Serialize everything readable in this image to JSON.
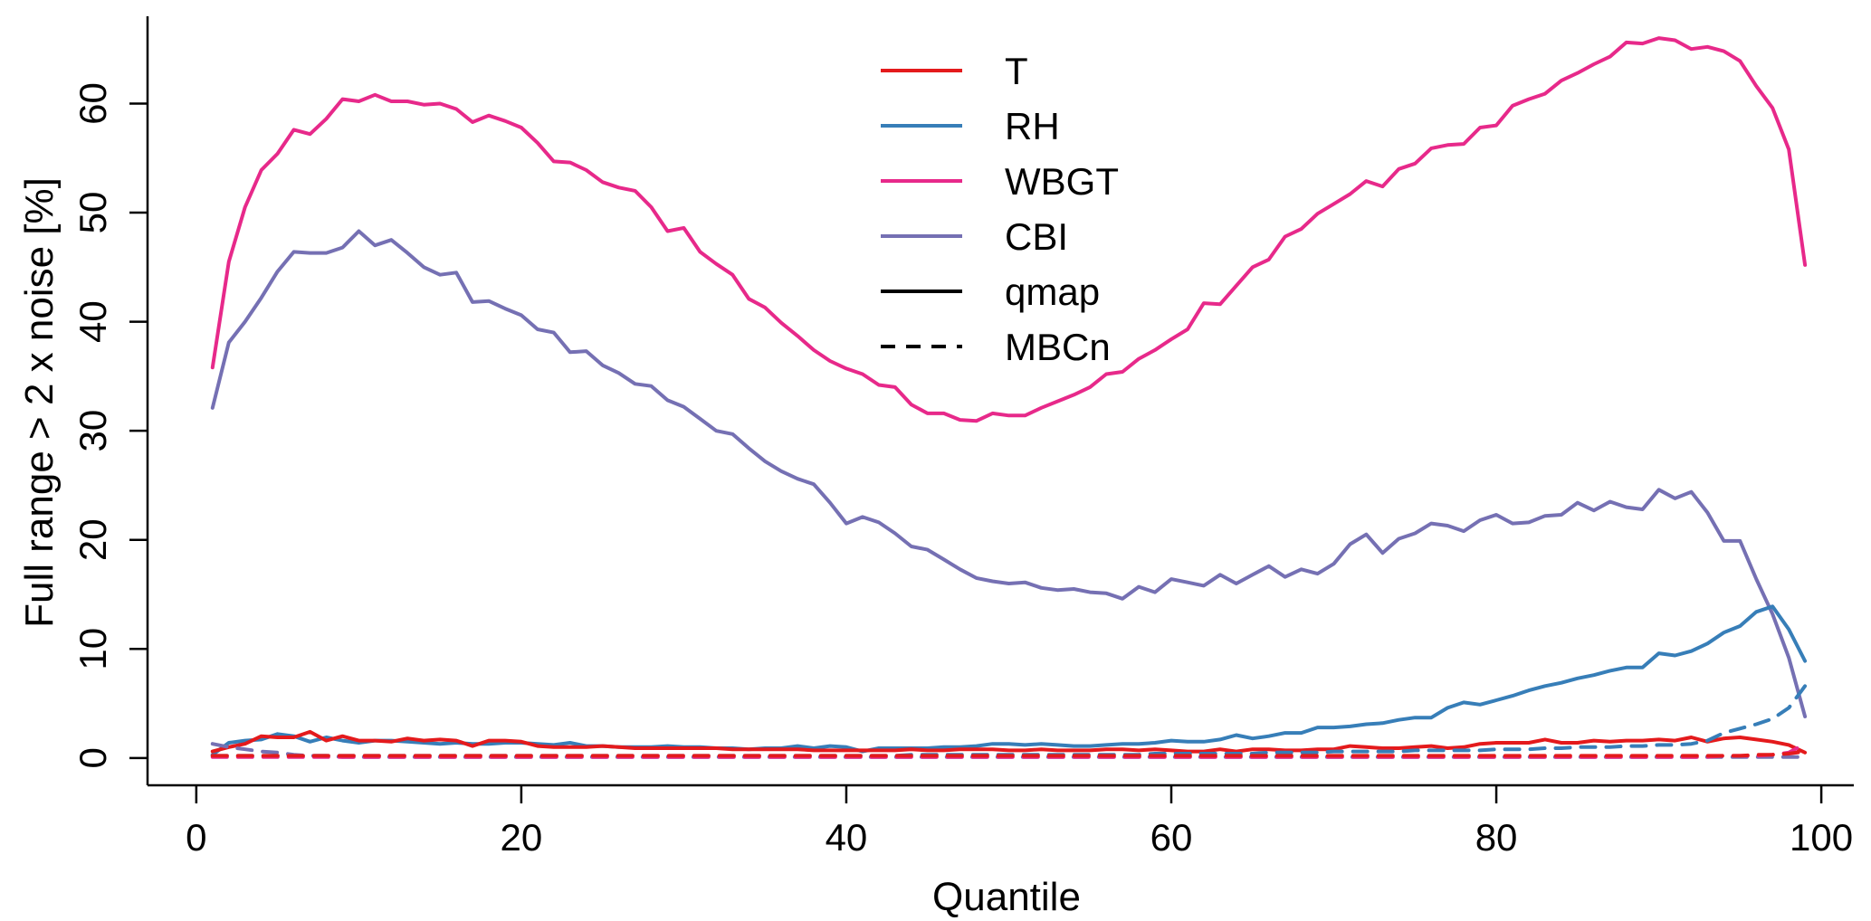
{
  "chart_data": {
    "type": "line",
    "title": "",
    "xlabel": "Quantile",
    "ylabel": "Full range > 2 x noise [%]",
    "xlim": [
      -3,
      102
    ],
    "ylim": [
      -2.5,
      68
    ],
    "xticks": [
      0,
      20,
      40,
      60,
      80,
      100
    ],
    "xtick_labels": [
      "0",
      "20",
      "40",
      "60",
      "80",
      "100"
    ],
    "yticks": [
      0,
      10,
      20,
      30,
      40,
      50,
      60
    ],
    "ytick_labels": [
      "0",
      "10",
      "20",
      "30",
      "40",
      "50",
      "60"
    ],
    "grid": false,
    "legend_position": "top-center",
    "legend": [
      {
        "label": "T",
        "color": "#e41a1c",
        "dash": "solid"
      },
      {
        "label": "RH",
        "color": "#377eb8",
        "dash": "solid"
      },
      {
        "label": "WBGT",
        "color": "#e7298a",
        "dash": "solid"
      },
      {
        "label": "CBI",
        "color": "#7570b3",
        "dash": "solid"
      },
      {
        "label": "qmap",
        "color": "#000000",
        "dash": "solid"
      },
      {
        "label": "MBCn",
        "color": "#000000",
        "dash": "dashed"
      }
    ],
    "x": [
      1,
      2,
      3,
      4,
      5,
      6,
      7,
      8,
      9,
      10,
      11,
      12,
      13,
      14,
      15,
      16,
      17,
      18,
      19,
      20,
      21,
      22,
      23,
      24,
      25,
      26,
      27,
      28,
      29,
      30,
      31,
      32,
      33,
      34,
      35,
      36,
      37,
      38,
      39,
      40,
      41,
      42,
      43,
      44,
      45,
      46,
      47,
      48,
      49,
      50,
      51,
      52,
      53,
      54,
      55,
      56,
      57,
      58,
      59,
      60,
      61,
      62,
      63,
      64,
      65,
      66,
      67,
      68,
      69,
      70,
      71,
      72,
      73,
      74,
      75,
      76,
      77,
      78,
      79,
      80,
      81,
      82,
      83,
      84,
      85,
      86,
      87,
      88,
      89,
      90,
      91,
      92,
      93,
      94,
      95,
      96,
      97,
      98,
      99
    ],
    "series": [
      {
        "name": "WBGT qmap",
        "variable": "WBGT",
        "method": "qmap",
        "color": "#e7298a",
        "dash": "solid",
        "values": [
          35.8,
          45.5,
          50.5,
          53.9,
          55.4,
          57.6,
          57.2,
          58.6,
          60.4,
          60.2,
          60.8,
          60.2,
          60.2,
          59.9,
          60.0,
          59.5,
          58.3,
          58.9,
          58.4,
          57.8,
          56.4,
          54.7,
          54.6,
          53.9,
          52.8,
          52.3,
          52.0,
          50.5,
          48.3,
          48.6,
          46.4,
          45.3,
          44.3,
          42.1,
          41.3,
          39.9,
          38.7,
          37.4,
          36.4,
          35.7,
          35.2,
          34.2,
          34.0,
          32.4,
          31.6,
          31.6,
          31.0,
          30.9,
          31.6,
          31.4,
          31.4,
          32.1,
          32.7,
          33.3,
          34.0,
          35.2,
          35.4,
          36.6,
          37.4,
          38.4,
          39.3,
          41.7,
          41.6,
          43.3,
          45.0,
          45.7,
          47.8,
          48.5,
          49.9,
          50.8,
          51.7,
          52.9,
          52.4,
          54.0,
          54.5,
          55.9,
          56.2,
          56.3,
          57.8,
          58.0,
          59.8,
          60.4,
          60.9,
          62.1,
          62.8,
          63.6,
          64.3,
          65.6,
          65.5,
          66.0,
          65.8,
          65.0,
          65.2,
          64.8,
          63.9,
          61.6,
          59.6,
          55.8,
          45.2
        ]
      },
      {
        "name": "CBI qmap",
        "variable": "CBI",
        "method": "qmap",
        "color": "#7570b3",
        "dash": "solid",
        "values": [
          32.1,
          38.1,
          40.0,
          42.2,
          44.6,
          46.4,
          46.3,
          46.3,
          46.8,
          48.3,
          47.0,
          47.5,
          46.3,
          45.0,
          44.3,
          44.5,
          41.8,
          41.9,
          41.2,
          40.6,
          39.3,
          39.0,
          37.2,
          37.3,
          36.0,
          35.3,
          34.3,
          34.1,
          32.8,
          32.2,
          31.1,
          30.0,
          29.7,
          28.4,
          27.2,
          26.3,
          25.6,
          25.1,
          23.4,
          21.5,
          22.1,
          21.6,
          20.6,
          19.4,
          19.1,
          18.2,
          17.3,
          16.5,
          16.2,
          16.0,
          16.1,
          15.6,
          15.4,
          15.5,
          15.2,
          15.1,
          14.6,
          15.7,
          15.2,
          16.4,
          16.1,
          15.8,
          16.8,
          16.0,
          16.8,
          17.6,
          16.6,
          17.3,
          16.9,
          17.8,
          19.6,
          20.5,
          18.8,
          20.1,
          20.6,
          21.5,
          21.3,
          20.8,
          21.8,
          22.3,
          21.5,
          21.6,
          22.2,
          22.3,
          23.4,
          22.7,
          23.5,
          23.0,
          22.8,
          24.6,
          23.8,
          24.4,
          22.5,
          19.9,
          19.9,
          16.4,
          13.2,
          9.2,
          3.8
        ]
      },
      {
        "name": "RH qmap",
        "variable": "RH",
        "method": "qmap",
        "color": "#377eb8",
        "dash": "solid",
        "values": [
          0.3,
          1.4,
          1.6,
          1.7,
          2.2,
          2.0,
          1.5,
          1.9,
          1.6,
          1.4,
          1.6,
          1.6,
          1.5,
          1.4,
          1.3,
          1.4,
          1.3,
          1.3,
          1.4,
          1.4,
          1.3,
          1.2,
          1.4,
          1.1,
          1.1,
          1.0,
          1.0,
          1.0,
          1.1,
          1.0,
          1.0,
          0.9,
          0.9,
          0.8,
          0.9,
          0.9,
          1.1,
          0.9,
          1.1,
          1.0,
          0.6,
          0.9,
          0.9,
          0.9,
          0.9,
          1.0,
          1.0,
          1.1,
          1.3,
          1.3,
          1.2,
          1.3,
          1.2,
          1.1,
          1.1,
          1.2,
          1.3,
          1.3,
          1.4,
          1.6,
          1.5,
          1.5,
          1.7,
          2.1,
          1.8,
          2.0,
          2.3,
          2.3,
          2.8,
          2.8,
          2.9,
          3.1,
          3.2,
          3.5,
          3.7,
          3.7,
          4.6,
          5.1,
          4.9,
          5.3,
          5.7,
          6.2,
          6.6,
          6.9,
          7.3,
          7.6,
          8.0,
          8.3,
          8.3,
          9.6,
          9.4,
          9.8,
          10.5,
          11.5,
          12.1,
          13.4,
          13.9,
          11.8,
          8.9
        ]
      },
      {
        "name": "T qmap",
        "variable": "T",
        "method": "qmap",
        "color": "#e41a1c",
        "dash": "solid",
        "values": [
          0.6,
          1.0,
          1.3,
          2.0,
          1.9,
          1.9,
          2.4,
          1.6,
          2.0,
          1.6,
          1.6,
          1.5,
          1.8,
          1.6,
          1.7,
          1.6,
          1.1,
          1.6,
          1.6,
          1.5,
          1.1,
          1.0,
          1.0,
          1.0,
          1.1,
          1.0,
          0.9,
          0.9,
          0.9,
          0.9,
          0.9,
          0.9,
          0.8,
          0.8,
          0.8,
          0.8,
          0.8,
          0.7,
          0.7,
          0.7,
          0.7,
          0.7,
          0.7,
          0.8,
          0.7,
          0.7,
          0.8,
          0.8,
          0.8,
          0.7,
          0.7,
          0.8,
          0.7,
          0.7,
          0.7,
          0.8,
          0.8,
          0.7,
          0.8,
          0.7,
          0.6,
          0.6,
          0.8,
          0.6,
          0.8,
          0.8,
          0.7,
          0.7,
          0.8,
          0.8,
          1.1,
          1.0,
          0.9,
          0.9,
          1.0,
          1.1,
          0.9,
          1.0,
          1.3,
          1.4,
          1.4,
          1.4,
          1.7,
          1.4,
          1.4,
          1.6,
          1.5,
          1.6,
          1.6,
          1.7,
          1.6,
          1.9,
          1.5,
          1.8,
          1.9,
          1.7,
          1.5,
          1.2,
          0.5
        ]
      },
      {
        "name": "RH MBCn",
        "variable": "RH",
        "method": "MBCn",
        "color": "#377eb8",
        "dash": "dashed",
        "values": [
          0.2,
          0.2,
          0.2,
          0.2,
          0.2,
          0.2,
          0.2,
          0.2,
          0.2,
          0.2,
          0.2,
          0.2,
          0.2,
          0.2,
          0.2,
          0.2,
          0.2,
          0.2,
          0.2,
          0.2,
          0.2,
          0.2,
          0.2,
          0.2,
          0.2,
          0.2,
          0.2,
          0.2,
          0.2,
          0.2,
          0.2,
          0.2,
          0.2,
          0.2,
          0.2,
          0.2,
          0.2,
          0.2,
          0.2,
          0.2,
          0.2,
          0.2,
          0.2,
          0.3,
          0.3,
          0.3,
          0.3,
          0.3,
          0.3,
          0.3,
          0.3,
          0.3,
          0.3,
          0.3,
          0.3,
          0.3,
          0.3,
          0.3,
          0.4,
          0.4,
          0.4,
          0.4,
          0.4,
          0.4,
          0.4,
          0.5,
          0.5,
          0.5,
          0.5,
          0.6,
          0.6,
          0.6,
          0.6,
          0.6,
          0.7,
          0.7,
          0.7,
          0.7,
          0.7,
          0.8,
          0.8,
          0.8,
          0.9,
          0.9,
          1.0,
          1.0,
          1.0,
          1.1,
          1.1,
          1.2,
          1.2,
          1.3,
          1.6,
          2.3,
          2.7,
          3.1,
          3.6,
          4.6,
          6.6
        ]
      },
      {
        "name": "CBI MBCn",
        "variable": "CBI",
        "method": "MBCn",
        "color": "#7570b3",
        "dash": "dashed",
        "values": [
          1.3,
          1.0,
          0.8,
          0.6,
          0.5,
          0.3,
          0.2,
          0.2,
          0.1,
          0.1,
          0.1,
          0.1,
          0.1,
          0.1,
          0.1,
          0.1,
          0.1,
          0.1,
          0.1,
          0.1,
          0.1,
          0.1,
          0.1,
          0.1,
          0.1,
          0.1,
          0.1,
          0.1,
          0.1,
          0.1,
          0.1,
          0.1,
          0.1,
          0.1,
          0.1,
          0.1,
          0.1,
          0.1,
          0.1,
          0.1,
          0.1,
          0.1,
          0.1,
          0.1,
          0.1,
          0.1,
          0.1,
          0.1,
          0.1,
          0.1,
          0.1,
          0.1,
          0.1,
          0.1,
          0.1,
          0.1,
          0.1,
          0.1,
          0.1,
          0.1,
          0.1,
          0.1,
          0.1,
          0.1,
          0.1,
          0.1,
          0.1,
          0.1,
          0.1,
          0.1,
          0.1,
          0.1,
          0.1,
          0.1,
          0.1,
          0.1,
          0.1,
          0.1,
          0.1,
          0.1,
          0.1,
          0.1,
          0.1,
          0.1,
          0.1,
          0.1,
          0.1,
          0.1,
          0.1,
          0.1,
          0.1,
          0.1,
          0.1,
          0.1,
          0.1,
          0.1,
          0.1,
          0.1,
          0.1
        ]
      },
      {
        "name": "WBGT MBCn",
        "variable": "WBGT",
        "method": "MBCn",
        "color": "#e7298a",
        "dash": "dashed",
        "values": [
          0.1,
          0.1,
          0.1,
          0.1,
          0.1,
          0.1,
          0.1,
          0.1,
          0.1,
          0.1,
          0.1,
          0.1,
          0.1,
          0.1,
          0.1,
          0.1,
          0.1,
          0.1,
          0.1,
          0.1,
          0.1,
          0.1,
          0.1,
          0.1,
          0.1,
          0.1,
          0.1,
          0.1,
          0.1,
          0.1,
          0.1,
          0.1,
          0.1,
          0.1,
          0.1,
          0.1,
          0.1,
          0.1,
          0.1,
          0.1,
          0.1,
          0.1,
          0.1,
          0.1,
          0.1,
          0.1,
          0.1,
          0.1,
          0.1,
          0.1,
          0.1,
          0.1,
          0.1,
          0.1,
          0.1,
          0.1,
          0.1,
          0.1,
          0.1,
          0.1,
          0.1,
          0.1,
          0.1,
          0.1,
          0.1,
          0.1,
          0.1,
          0.1,
          0.1,
          0.1,
          0.1,
          0.1,
          0.1,
          0.1,
          0.1,
          0.1,
          0.1,
          0.1,
          0.1,
          0.1,
          0.1,
          0.1,
          0.1,
          0.1,
          0.1,
          0.1,
          0.1,
          0.1,
          0.1,
          0.1,
          0.1,
          0.1,
          0.1,
          0.2,
          0.2,
          0.2,
          0.3,
          0.5,
          1.3
        ]
      },
      {
        "name": "T MBCn",
        "variable": "T",
        "method": "MBCn",
        "color": "#e41a1c",
        "dash": "dashed",
        "values": [
          0.2,
          0.2,
          0.2,
          0.2,
          0.2,
          0.2,
          0.2,
          0.2,
          0.2,
          0.2,
          0.2,
          0.2,
          0.2,
          0.2,
          0.2,
          0.2,
          0.2,
          0.2,
          0.2,
          0.2,
          0.2,
          0.2,
          0.2,
          0.2,
          0.2,
          0.2,
          0.2,
          0.2,
          0.2,
          0.2,
          0.2,
          0.2,
          0.2,
          0.2,
          0.2,
          0.2,
          0.2,
          0.2,
          0.2,
          0.2,
          0.2,
          0.2,
          0.2,
          0.2,
          0.2,
          0.2,
          0.2,
          0.2,
          0.2,
          0.2,
          0.2,
          0.2,
          0.2,
          0.2,
          0.2,
          0.2,
          0.2,
          0.2,
          0.2,
          0.2,
          0.2,
          0.2,
          0.2,
          0.2,
          0.2,
          0.2,
          0.2,
          0.2,
          0.2,
          0.2,
          0.2,
          0.2,
          0.2,
          0.2,
          0.2,
          0.2,
          0.2,
          0.2,
          0.2,
          0.2,
          0.2,
          0.2,
          0.2,
          0.2,
          0.2,
          0.2,
          0.2,
          0.2,
          0.2,
          0.2,
          0.2,
          0.2,
          0.2,
          0.2,
          0.2,
          0.3,
          0.3,
          0.4,
          0.6
        ]
      }
    ]
  }
}
